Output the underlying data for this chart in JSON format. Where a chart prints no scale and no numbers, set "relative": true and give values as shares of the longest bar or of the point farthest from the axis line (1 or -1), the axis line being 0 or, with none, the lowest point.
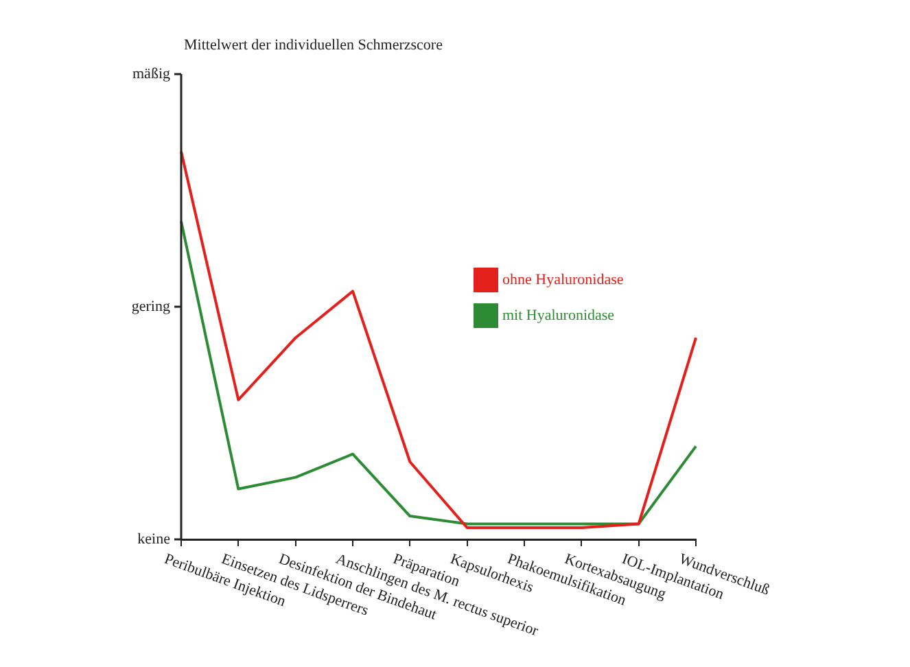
{
  "chart_data": {
    "type": "line",
    "title": "Mittelwert der individuellen Schmerzscore",
    "categories": [
      "Peribulbäre Injektion",
      "Einsetzen des Lidsperrers",
      "Desinfektion der Bindehaut",
      "Anschlingen des M. rectus superior",
      "Präparation",
      "Kapsulorhexis",
      "Phakoemulsifikation",
      "Kortexabsaugung",
      "IOL-Implantation",
      "Wundverschluß"
    ],
    "series": [
      {
        "name": "ohne Hyaluronidase",
        "color": "#e3201b",
        "values": [
          1,
          0.36,
          0.52,
          0.64,
          0.2,
          0.03,
          0.03,
          0.03,
          0.04,
          0.52
        ]
      },
      {
        "name": "mit Hyaluronidase",
        "color": "#2e8b35",
        "values": [
          0.82,
          0.13,
          0.16,
          0.22,
          0.06,
          0.04,
          0.04,
          0.04,
          0.04,
          0.24
        ]
      }
    ],
    "relative": true,
    "annotations": [
      "keine",
      "gering",
      "mäßig"
    ],
    "legend": "center right",
    "marker": "none"
  }
}
